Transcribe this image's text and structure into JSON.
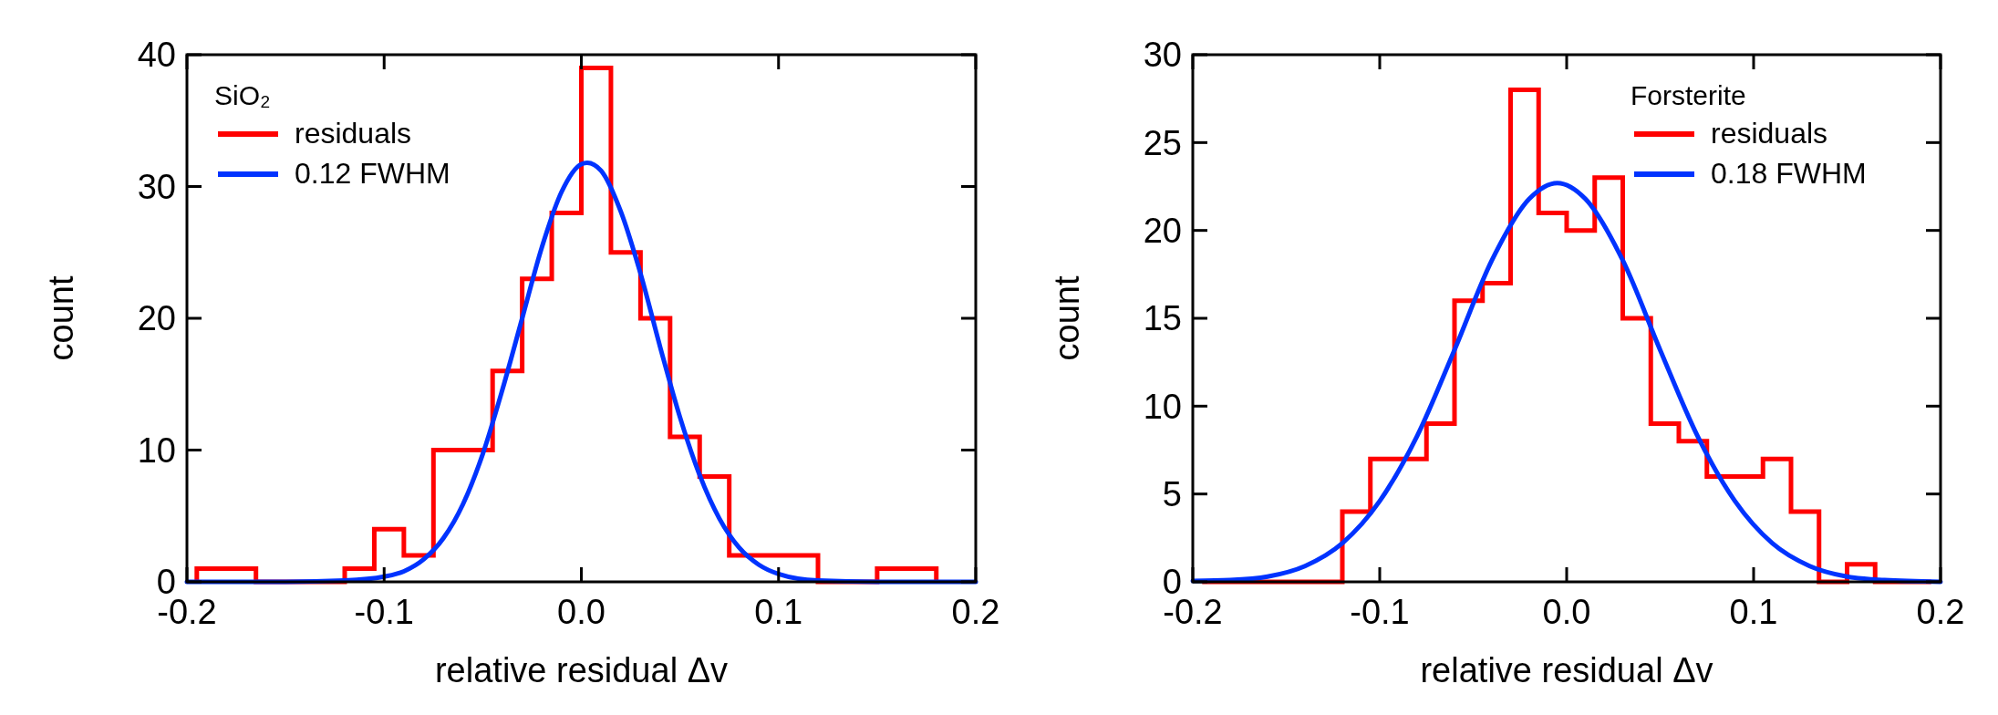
{
  "chart_data": [
    {
      "type": "histogram",
      "xlabel": "relative residual Δv",
      "ylabel": "count",
      "legend_title": "SiO₂",
      "legend": "top left",
      "xlim": [
        -0.2,
        0.2
      ],
      "ylim": [
        0,
        40
      ],
      "xticks": [
        {
          "value": -0.2,
          "label": "-0.2"
        },
        {
          "value": -0.1,
          "label": "-0.1"
        },
        {
          "value": 0,
          "label": "0.0"
        },
        {
          "value": 0.1,
          "label": "0.1"
        },
        {
          "value": 0.2,
          "label": "0.2"
        }
      ],
      "yticks": [
        0,
        10,
        20,
        30,
        40
      ],
      "series": [
        {
          "type": "histogram",
          "name": "residuals",
          "color": "#ff0000",
          "bins": [
            -0.195,
            -0.18,
            -0.165,
            -0.15,
            -0.135,
            -0.12,
            -0.105,
            -0.09,
            -0.075,
            -0.06,
            -0.045,
            -0.03,
            -0.015,
            0,
            0.015,
            0.03,
            0.045,
            0.06,
            0.075,
            0.09,
            0.105,
            0.12,
            0.135,
            0.15,
            0.165,
            0.18
          ],
          "values": [
            1,
            1,
            0,
            0,
            0,
            1,
            4,
            2,
            10,
            10,
            16,
            23,
            28,
            39,
            25,
            20,
            11,
            8,
            2,
            2,
            2,
            0,
            0,
            1,
            1
          ]
        },
        {
          "type": "line",
          "name": "0.12 FWHM",
          "color": "#0033ff",
          "x": [
            -0.2,
            -0.15,
            -0.12,
            -0.1,
            -0.09,
            -0.08,
            -0.07,
            -0.06,
            -0.05,
            -0.04,
            -0.03,
            -0.02,
            -0.01,
            0,
            0.003,
            0.01,
            0.02,
            0.03,
            0.04,
            0.05,
            0.06,
            0.07,
            0.08,
            0.09,
            0.1,
            0.12,
            0.15,
            0.2
          ],
          "values": [
            0,
            0,
            0.1,
            0.4,
            0.8,
            1.7,
            3.3,
            5.9,
            9.7,
            14.6,
            20,
            25.4,
            29.6,
            31.7,
            31.8,
            31.2,
            28.1,
            23.4,
            17.8,
            12.5,
            8.1,
            4.8,
            2.6,
            1.3,
            0.6,
            0.1,
            0,
            0
          ]
        }
      ]
    },
    {
      "type": "histogram",
      "xlabel": "relative residual Δv",
      "ylabel": "count",
      "legend_title": "Forsterite",
      "legend": "top right",
      "xlim": [
        -0.2,
        0.2
      ],
      "ylim": [
        0,
        30
      ],
      "xticks": [
        {
          "value": -0.2,
          "label": "-0.2"
        },
        {
          "value": -0.1,
          "label": "-0.1"
        },
        {
          "value": 0,
          "label": "0.0"
        },
        {
          "value": 0.1,
          "label": "0.1"
        },
        {
          "value": 0.2,
          "label": "0.2"
        }
      ],
      "yticks": [
        0,
        5,
        10,
        15,
        20,
        25,
        30
      ],
      "series": [
        {
          "type": "histogram",
          "name": "residuals",
          "color": "#ff0000",
          "bins": [
            -0.195,
            -0.18,
            -0.165,
            -0.15,
            -0.135,
            -0.12,
            -0.105,
            -0.09,
            -0.075,
            -0.06,
            -0.045,
            -0.03,
            -0.015,
            0,
            0.015,
            0.03,
            0.045,
            0.06,
            0.075,
            0.09,
            0.105,
            0.12,
            0.135,
            0.15,
            0.165,
            0.18,
            0.195
          ],
          "values": [
            0,
            0,
            0,
            0,
            0,
            4,
            7,
            7,
            9,
            16,
            17,
            28,
            21,
            20,
            23,
            15,
            9,
            8,
            6,
            6,
            7,
            4,
            0,
            1,
            0,
            0
          ]
        },
        {
          "type": "line",
          "name": "0.18 FWHM",
          "color": "#0033ff",
          "x": [
            -0.2,
            -0.18,
            -0.16,
            -0.14,
            -0.12,
            -0.1,
            -0.08,
            -0.06,
            -0.04,
            -0.02,
            -0.005,
            0.01,
            0.03,
            0.05,
            0.07,
            0.09,
            0.11,
            0.13,
            0.15,
            0.17,
            0.2
          ],
          "values": [
            0.05,
            0.1,
            0.3,
            0.9,
            2.2,
            4.6,
            8.3,
            13.2,
            18.3,
            21.8,
            22.7,
            21.8,
            18.3,
            13.2,
            8.3,
            4.6,
            2.2,
            0.9,
            0.3,
            0.1,
            0
          ]
        }
      ]
    }
  ]
}
